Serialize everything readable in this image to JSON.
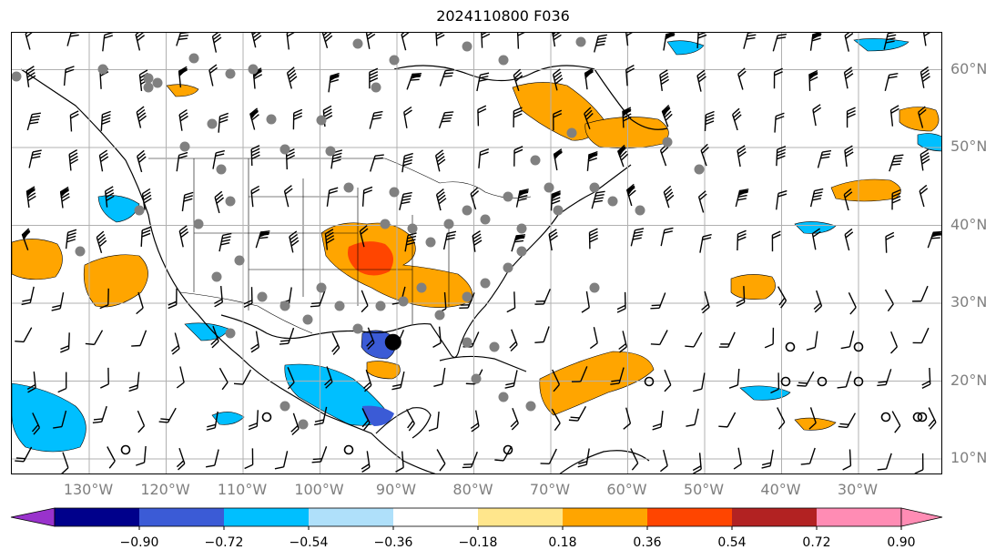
{
  "title": "2024110800 F036",
  "lat_labels": [
    "60°N",
    "50°N",
    "40°N",
    "30°N",
    "20°N",
    "10°N"
  ],
  "lat_values": [
    60,
    50,
    40,
    30,
    20,
    10
  ],
  "lon_labels": [
    "130°W",
    "120°W",
    "110°W",
    "100°W",
    "90°W",
    "80°W",
    "70°W",
    "60°W",
    "50°W",
    "40°W",
    "30°W"
  ],
  "lon_values": [
    -130,
    -120,
    -110,
    -100,
    -90,
    -80,
    -70,
    -60,
    -50,
    -40,
    -30
  ],
  "colorbar": {
    "ticks": [
      "−0.90",
      "−0.72",
      "−0.54",
      "−0.36",
      "−0.18",
      "0.18",
      "0.36",
      "0.54",
      "0.72",
      "0.90"
    ],
    "colors": {
      "under": "#9932cc",
      "bins": [
        "#9932cc",
        "#00008b",
        "#3b5bd6",
        "#00bfff",
        "#afe0fa",
        "#ffffff",
        "#ffe68c",
        "#ffa500",
        "#ff4500",
        "#b22222",
        "#ff8cb4"
      ],
      "over": "#ff8cb4"
    }
  },
  "markers": {
    "storm_center": {
      "lon": -90.5,
      "lat": 25.0
    }
  }
}
